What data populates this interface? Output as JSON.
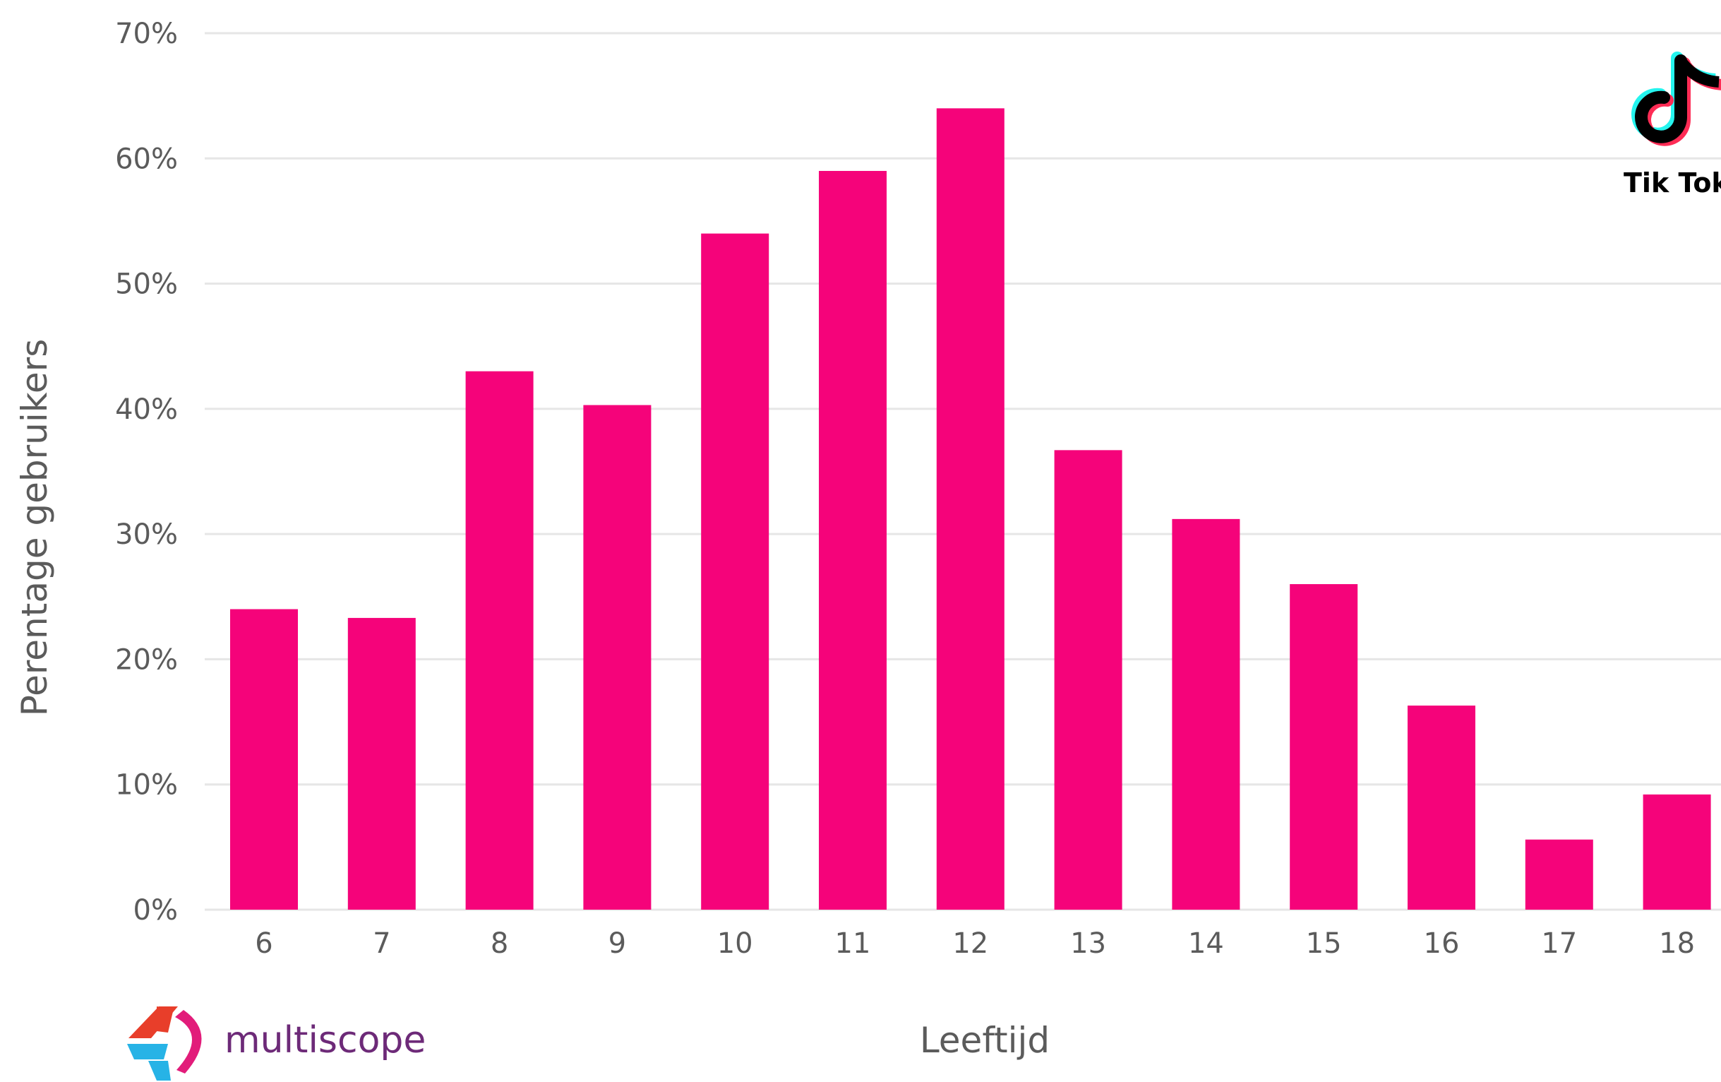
{
  "chart_data": {
    "type": "bar",
    "categories": [
      "6",
      "7",
      "8",
      "9",
      "10",
      "11",
      "12",
      "13",
      "14",
      "15",
      "16",
      "17",
      "18"
    ],
    "values": [
      24,
      23.3,
      43,
      40.3,
      54,
      59,
      64,
      36.7,
      31.2,
      26,
      16.3,
      5.6,
      9.2
    ],
    "xlabel": "Leeftijd",
    "ylabel": "Perentage gebruikers",
    "ylim": [
      0,
      70
    ],
    "yticks": [
      0,
      10,
      20,
      30,
      40,
      50,
      60,
      70
    ],
    "ytick_labels": [
      "0%",
      "10%",
      "20%",
      "30%",
      "40%",
      "50%",
      "60%",
      "70%"
    ],
    "bar_color": "#f5037a",
    "grid": true,
    "gridline_color": "#e6e6e6",
    "legend": "none"
  },
  "logos": {
    "source_name": "multiscope",
    "platform_name": "Tik Tok",
    "brand_colors": {
      "multiscope_text": "#6d2a78",
      "multiscope_red": "#e83e2a",
      "multiscope_pink": "#e21c7a",
      "multiscope_blue": "#27b3e6",
      "tiktok_cyan": "#25f4ee",
      "tiktok_red": "#fe2c55",
      "tiktok_black": "#000000"
    }
  }
}
